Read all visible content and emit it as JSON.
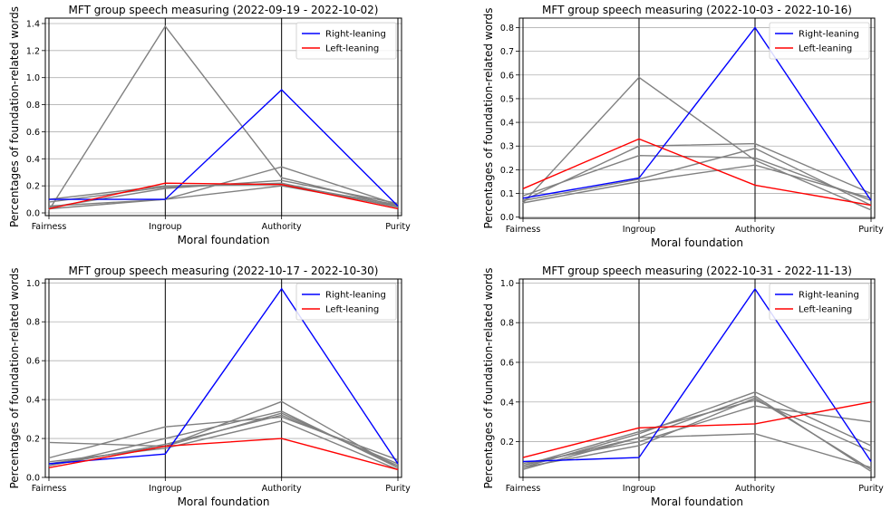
{
  "colors": {
    "right": "#0000ff",
    "left": "#ff0000",
    "other": "#808080",
    "grid": "#b0b0b0"
  },
  "chart_data": [
    {
      "type": "line",
      "title": "MFT group speech measuring (2022-09-19 - 2022-10-02)",
      "xlabel": "Moral foundation",
      "ylabel": "Percentages of foundation-related words",
      "categories": [
        "Fairness",
        "Ingroup",
        "Authority",
        "Purity"
      ],
      "ylim": [
        -0.02,
        1.44
      ],
      "yticks": [
        0.0,
        0.2,
        0.4,
        0.6,
        0.8,
        1.0,
        1.2,
        1.4
      ],
      "legend": "top-right",
      "grid": "y",
      "series": [
        {
          "name": "Right-leaning",
          "role": "right",
          "values": [
            0.1,
            0.1,
            0.91,
            0.05
          ]
        },
        {
          "name": "Left-leaning",
          "role": "left",
          "values": [
            0.03,
            0.22,
            0.21,
            0.03
          ]
        },
        {
          "role": "other",
          "values": [
            0.02,
            1.38,
            0.26,
            0.05
          ]
        },
        {
          "role": "other",
          "values": [
            0.05,
            0.1,
            0.34,
            0.06
          ]
        },
        {
          "role": "other",
          "values": [
            0.04,
            0.18,
            0.24,
            0.07
          ]
        },
        {
          "role": "other",
          "values": [
            0.08,
            0.19,
            0.22,
            0.04
          ]
        },
        {
          "role": "other",
          "values": [
            0.1,
            0.2,
            0.21,
            0.06
          ]
        },
        {
          "role": "other",
          "values": [
            0.03,
            0.1,
            0.2,
            0.05
          ]
        }
      ]
    },
    {
      "type": "line",
      "title": "MFT group speech measuring (2022-10-03 - 2022-10-16)",
      "xlabel": "Moral foundation",
      "ylabel": "Percentages of foundation-related words",
      "categories": [
        "Fairness",
        "Ingroup",
        "Authority",
        "Purity"
      ],
      "ylim": [
        -0.005,
        0.84
      ],
      "yticks": [
        0.0,
        0.1,
        0.2,
        0.3,
        0.4,
        0.5,
        0.6,
        0.7,
        0.8
      ],
      "legend": "top-right",
      "grid": "y",
      "series": [
        {
          "name": "Right-leaning",
          "role": "right",
          "values": [
            0.08,
            0.165,
            0.8,
            0.07
          ]
        },
        {
          "name": "Left-leaning",
          "role": "left",
          "values": [
            0.12,
            0.33,
            0.135,
            0.05
          ]
        },
        {
          "role": "other",
          "values": [
            0.06,
            0.59,
            0.24,
            0.03
          ]
        },
        {
          "role": "other",
          "values": [
            0.07,
            0.3,
            0.31,
            0.1
          ]
        },
        {
          "role": "other",
          "values": [
            0.09,
            0.26,
            0.25,
            0.07
          ]
        },
        {
          "role": "other",
          "values": [
            0.06,
            0.15,
            0.22,
            0.08
          ]
        },
        {
          "role": "other",
          "values": [
            0.07,
            0.16,
            0.29,
            0.05
          ]
        }
      ]
    },
    {
      "type": "line",
      "title": "MFT group speech measuring (2022-10-17 - 2022-10-30)",
      "xlabel": "Moral foundation",
      "ylabel": "Percentages of foundation-related words",
      "categories": [
        "Fairness",
        "Ingroup",
        "Authority",
        "Purity"
      ],
      "ylim": [
        0.0,
        1.02
      ],
      "yticks": [
        0.0,
        0.2,
        0.4,
        0.6,
        0.8,
        1.0
      ],
      "legend": "top-right",
      "grid": "y",
      "series": [
        {
          "name": "Right-leaning",
          "role": "right",
          "values": [
            0.07,
            0.12,
            0.97,
            0.07
          ]
        },
        {
          "name": "Left-leaning",
          "role": "left",
          "values": [
            0.05,
            0.16,
            0.2,
            0.04
          ]
        },
        {
          "role": "other",
          "values": [
            0.18,
            0.16,
            0.39,
            0.05
          ]
        },
        {
          "role": "other",
          "values": [
            0.1,
            0.26,
            0.31,
            0.09
          ]
        },
        {
          "role": "other",
          "values": [
            0.07,
            0.16,
            0.33,
            0.06
          ]
        },
        {
          "role": "other",
          "values": [
            0.06,
            0.2,
            0.34,
            0.05
          ]
        },
        {
          "role": "other",
          "values": [
            0.08,
            0.15,
            0.29,
            0.04
          ]
        },
        {
          "role": "other",
          "values": [
            0.06,
            0.17,
            0.32,
            0.07
          ]
        }
      ]
    },
    {
      "type": "line",
      "title": "MFT group speech measuring (2022-10-31 - 2022-11-13)",
      "xlabel": "Moral foundation",
      "ylabel": "Percentages of foundation-related words",
      "categories": [
        "Fairness",
        "Ingroup",
        "Authority",
        "Purity"
      ],
      "ylim": [
        0.02,
        1.02
      ],
      "yticks": [
        0.2,
        0.4,
        0.6,
        0.8,
        1.0
      ],
      "legend": "top-right",
      "grid": "y",
      "series": [
        {
          "name": "Right-leaning",
          "role": "right",
          "values": [
            0.1,
            0.12,
            0.97,
            0.1
          ]
        },
        {
          "name": "Left-leaning",
          "role": "left",
          "values": [
            0.12,
            0.27,
            0.29,
            0.4
          ]
        },
        {
          "role": "other",
          "values": [
            0.07,
            0.24,
            0.45,
            0.18
          ]
        },
        {
          "role": "other",
          "values": [
            0.08,
            0.22,
            0.43,
            0.05
          ]
        },
        {
          "role": "other",
          "values": [
            0.09,
            0.2,
            0.38,
            0.3
          ]
        },
        {
          "role": "other",
          "values": [
            0.06,
            0.22,
            0.24,
            0.07
          ]
        },
        {
          "role": "other",
          "values": [
            0.08,
            0.25,
            0.41,
            0.15
          ]
        },
        {
          "role": "other",
          "values": [
            0.07,
            0.18,
            0.42,
            0.06
          ]
        }
      ]
    }
  ]
}
